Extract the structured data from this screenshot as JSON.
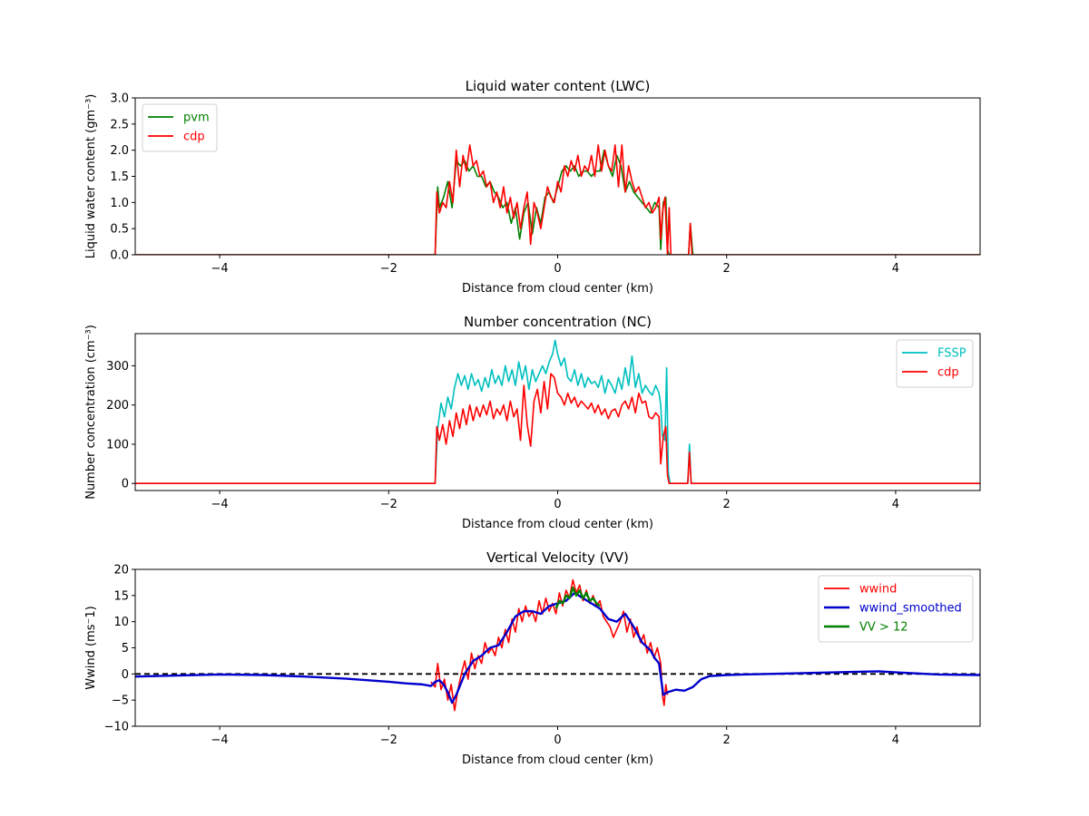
{
  "chart_data": [
    {
      "type": "line",
      "title": "Liquid water content (LWC)",
      "xlabel": "Distance from cloud center (km)",
      "ylabel": "Liquid water content (gm⁻³)",
      "xlim": [
        -5,
        5
      ],
      "ylim": [
        0,
        3.0
      ],
      "xticks": [
        -4,
        -2,
        0,
        2,
        4
      ],
      "xtick_labels": [
        "−4",
        "−2",
        "0",
        "2",
        "4"
      ],
      "yticks": [
        0,
        0.5,
        1.0,
        1.5,
        2.0,
        2.5,
        3.0
      ],
      "ytick_labels": [
        "0.0",
        "0.5",
        "1.0",
        "1.5",
        "2.0",
        "2.5",
        "3.0"
      ],
      "grid": false,
      "legend_position": "top-left",
      "series": [
        {
          "name": "pvm",
          "color": "#008000",
          "x": [
            -5,
            -1.45,
            -1.42,
            -1.4,
            -1.35,
            -1.3,
            -1.25,
            -1.2,
            -1.15,
            -1.1,
            -1.05,
            -1.0,
            -0.95,
            -0.9,
            -0.85,
            -0.8,
            -0.75,
            -0.7,
            -0.65,
            -0.6,
            -0.55,
            -0.5,
            -0.45,
            -0.4,
            -0.35,
            -0.3,
            -0.25,
            -0.2,
            -0.15,
            -0.1,
            -0.05,
            0.0,
            0.05,
            0.1,
            0.15,
            0.2,
            0.25,
            0.3,
            0.35,
            0.4,
            0.45,
            0.5,
            0.55,
            0.6,
            0.65,
            0.7,
            0.75,
            0.8,
            0.85,
            0.9,
            0.95,
            1.0,
            1.05,
            1.1,
            1.15,
            1.2,
            1.22,
            1.25,
            1.28,
            1.3,
            1.32,
            1.35,
            1.5,
            1.55,
            1.57,
            1.6,
            5
          ],
          "y": [
            0,
            0,
            1.3,
            0.9,
            1.1,
            1.4,
            0.9,
            1.8,
            1.7,
            1.8,
            1.6,
            1.7,
            1.5,
            1.5,
            1.3,
            1.4,
            1.2,
            1.1,
            0.9,
            1.0,
            0.6,
            0.9,
            0.3,
            0.8,
            1.0,
            0.4,
            0.9,
            0.6,
            1.1,
            1.2,
            1.0,
            1.3,
            1.6,
            1.7,
            1.6,
            1.7,
            1.5,
            1.6,
            1.6,
            1.5,
            1.6,
            1.6,
            2.0,
            1.7,
            1.5,
            1.9,
            1.7,
            1.2,
            1.4,
            1.2,
            1.1,
            1.0,
            0.9,
            0.8,
            1.0,
            0.9,
            0.1,
            1.0,
            1.1,
            0.1,
            0.0,
            0,
            0,
            0,
            0.6,
            0,
            0
          ]
        },
        {
          "name": "cdp",
          "color": "#ff0000",
          "x": [
            -5,
            -1.45,
            -1.43,
            -1.4,
            -1.36,
            -1.32,
            -1.28,
            -1.24,
            -1.2,
            -1.16,
            -1.12,
            -1.08,
            -1.04,
            -1.0,
            -0.96,
            -0.92,
            -0.88,
            -0.84,
            -0.8,
            -0.76,
            -0.72,
            -0.68,
            -0.64,
            -0.6,
            -0.56,
            -0.52,
            -0.48,
            -0.44,
            -0.4,
            -0.36,
            -0.32,
            -0.28,
            -0.24,
            -0.2,
            -0.16,
            -0.12,
            -0.08,
            -0.04,
            0.0,
            0.04,
            0.08,
            0.12,
            0.16,
            0.2,
            0.24,
            0.28,
            0.32,
            0.36,
            0.4,
            0.44,
            0.48,
            0.52,
            0.56,
            0.6,
            0.64,
            0.68,
            0.72,
            0.76,
            0.8,
            0.84,
            0.88,
            0.92,
            0.96,
            1.0,
            1.04,
            1.08,
            1.12,
            1.16,
            1.2,
            1.22,
            1.24,
            1.27,
            1.3,
            1.32,
            1.34,
            1.5,
            1.55,
            1.57,
            1.59,
            5
          ],
          "y": [
            0,
            0,
            1.2,
            0.8,
            1.0,
            0.9,
            1.4,
            1.0,
            2.0,
            1.3,
            1.9,
            1.6,
            2.1,
            1.7,
            1.8,
            1.5,
            1.6,
            1.3,
            1.4,
            1.0,
            1.2,
            0.9,
            1.3,
            0.8,
            1.1,
            0.7,
            1.0,
            0.5,
            0.9,
            1.2,
            0.2,
            1.0,
            0.8,
            0.5,
            0.9,
            1.3,
            1.1,
            1.0,
            1.4,
            1.2,
            1.7,
            1.5,
            1.8,
            1.6,
            1.9,
            1.5,
            1.7,
            1.6,
            1.9,
            1.5,
            2.1,
            1.6,
            2.0,
            1.7,
            1.6,
            2.1,
            1.3,
            2.1,
            1.2,
            1.7,
            1.4,
            1.2,
            1.3,
            1.1,
            0.9,
            1.0,
            0.8,
            0.9,
            1.1,
            0.3,
            0.8,
            1.1,
            0.0,
            0.9,
            0,
            0,
            0,
            0.6,
            0,
            0
          ]
        }
      ]
    },
    {
      "type": "line",
      "title": "Number concentration (NC)",
      "xlabel": "Distance from cloud center (km)",
      "ylabel": "Number concentration (cm⁻³)",
      "xlim": [
        -5,
        5
      ],
      "ylim": [
        -18,
        382
      ],
      "xticks": [
        -4,
        -2,
        0,
        2,
        4
      ],
      "xtick_labels": [
        "−4",
        "−2",
        "0",
        "2",
        "4"
      ],
      "yticks": [
        0,
        100,
        200,
        300
      ],
      "ytick_labels": [
        "0",
        "100",
        "200",
        "300"
      ],
      "grid": false,
      "legend_position": "top-right",
      "series": [
        {
          "name": "FSSP",
          "color": "#00bfbf",
          "x": [
            -5,
            -1.45,
            -1.42,
            -1.38,
            -1.34,
            -1.3,
            -1.26,
            -1.22,
            -1.18,
            -1.14,
            -1.1,
            -1.06,
            -1.02,
            -0.98,
            -0.94,
            -0.9,
            -0.86,
            -0.82,
            -0.78,
            -0.74,
            -0.7,
            -0.66,
            -0.62,
            -0.58,
            -0.54,
            -0.5,
            -0.46,
            -0.42,
            -0.38,
            -0.34,
            -0.3,
            -0.26,
            -0.22,
            -0.18,
            -0.14,
            -0.1,
            -0.06,
            -0.03,
            0.0,
            0.04,
            0.08,
            0.12,
            0.16,
            0.2,
            0.24,
            0.28,
            0.32,
            0.36,
            0.4,
            0.44,
            0.48,
            0.52,
            0.56,
            0.6,
            0.64,
            0.68,
            0.72,
            0.76,
            0.8,
            0.84,
            0.88,
            0.92,
            0.96,
            1.0,
            1.04,
            1.08,
            1.12,
            1.16,
            1.2,
            1.22,
            1.24,
            1.27,
            1.29,
            1.31,
            1.33,
            1.5,
            1.54,
            1.56,
            1.58,
            5
          ],
          "y": [
            0,
            0,
            140,
            205,
            170,
            220,
            190,
            245,
            280,
            250,
            275,
            240,
            280,
            250,
            265,
            235,
            270,
            245,
            290,
            255,
            275,
            250,
            300,
            260,
            290,
            250,
            310,
            265,
            300,
            240,
            290,
            260,
            280,
            300,
            280,
            310,
            330,
            365,
            330,
            300,
            320,
            270,
            260,
            290,
            250,
            280,
            245,
            270,
            255,
            260,
            245,
            275,
            230,
            265,
            250,
            230,
            270,
            240,
            295,
            250,
            325,
            245,
            280,
            230,
            250,
            235,
            225,
            250,
            230,
            200,
            120,
            110,
            295,
            30,
            0,
            0,
            0,
            100,
            0,
            0
          ]
        },
        {
          "name": "cdp",
          "color": "#ff0000",
          "x": [
            -5,
            -1.45,
            -1.43,
            -1.4,
            -1.36,
            -1.32,
            -1.28,
            -1.24,
            -1.2,
            -1.16,
            -1.12,
            -1.08,
            -1.04,
            -1.0,
            -0.96,
            -0.92,
            -0.88,
            -0.84,
            -0.8,
            -0.76,
            -0.72,
            -0.68,
            -0.64,
            -0.6,
            -0.56,
            -0.52,
            -0.48,
            -0.44,
            -0.4,
            -0.36,
            -0.32,
            -0.28,
            -0.24,
            -0.2,
            -0.16,
            -0.12,
            -0.08,
            -0.04,
            0.0,
            0.04,
            0.08,
            0.12,
            0.16,
            0.2,
            0.24,
            0.28,
            0.32,
            0.36,
            0.4,
            0.44,
            0.48,
            0.52,
            0.56,
            0.6,
            0.64,
            0.68,
            0.72,
            0.76,
            0.8,
            0.84,
            0.88,
            0.92,
            0.96,
            1.0,
            1.04,
            1.08,
            1.12,
            1.16,
            1.2,
            1.22,
            1.25,
            1.28,
            1.3,
            1.32,
            1.5,
            1.54,
            1.56,
            1.58,
            5
          ],
          "y": [
            0,
            0,
            145,
            110,
            150,
            100,
            160,
            120,
            180,
            140,
            190,
            150,
            200,
            160,
            195,
            170,
            200,
            175,
            210,
            165,
            190,
            175,
            200,
            160,
            210,
            170,
            190,
            110,
            250,
            150,
            95,
            210,
            240,
            180,
            260,
            190,
            280,
            270,
            230,
            220,
            200,
            230,
            205,
            220,
            195,
            210,
            200,
            190,
            205,
            180,
            200,
            175,
            190,
            165,
            185,
            190,
            170,
            200,
            210,
            190,
            220,
            180,
            230,
            205,
            210,
            170,
            165,
            180,
            170,
            50,
            120,
            145,
            20,
            0,
            0,
            0,
            80,
            0,
            0
          ]
        }
      ]
    },
    {
      "type": "line",
      "title": "Vertical Velocity (VV)",
      "xlabel": "Distance from cloud center (km)",
      "ylabel": "Wwind (ms⁻1)",
      "xlim": [
        -5,
        5
      ],
      "ylim": [
        -10,
        20
      ],
      "xticks": [
        -4,
        -2,
        0,
        2,
        4
      ],
      "xtick_labels": [
        "−4",
        "−2",
        "0",
        "2",
        "4"
      ],
      "yticks": [
        -10,
        -5,
        0,
        5,
        10,
        15,
        20
      ],
      "ytick_labels": [
        "−10",
        "−5",
        "0",
        "5",
        "10",
        "15",
        "20"
      ],
      "grid": false,
      "legend_position": "top-right",
      "reference_line": {
        "y": 0,
        "style": "dashed",
        "color": "#000000"
      },
      "series": [
        {
          "name": "wwind",
          "color": "#ff0000",
          "x": [
            -1.5,
            -1.45,
            -1.42,
            -1.38,
            -1.34,
            -1.3,
            -1.26,
            -1.22,
            -1.18,
            -1.14,
            -1.1,
            -1.06,
            -1.02,
            -0.98,
            -0.94,
            -0.9,
            -0.86,
            -0.82,
            -0.78,
            -0.74,
            -0.7,
            -0.66,
            -0.62,
            -0.58,
            -0.54,
            -0.5,
            -0.46,
            -0.42,
            -0.38,
            -0.34,
            -0.3,
            -0.26,
            -0.22,
            -0.18,
            -0.14,
            -0.1,
            -0.06,
            -0.02,
            0.02,
            0.06,
            0.1,
            0.14,
            0.18,
            0.22,
            0.26,
            0.3,
            0.34,
            0.38,
            0.42,
            0.46,
            0.5,
            0.54,
            0.58,
            0.62,
            0.66,
            0.7,
            0.74,
            0.78,
            0.82,
            0.86,
            0.9,
            0.94,
            0.98,
            1.02,
            1.06,
            1.1,
            1.14,
            1.18,
            1.22,
            1.24,
            1.26,
            1.28,
            1.3
          ],
          "y": [
            -1.5,
            -2.5,
            2.0,
            -3.0,
            -1.0,
            -5.0,
            -2.0,
            -7.0,
            -3.0,
            0.0,
            2.5,
            -1.0,
            4.0,
            1.0,
            3.5,
            2.0,
            6.0,
            4.0,
            5.0,
            3.5,
            7.0,
            5.0,
            8.5,
            6.0,
            10.5,
            8.0,
            12.5,
            10.0,
            13.0,
            11.0,
            12.0,
            10.0,
            14.0,
            11.5,
            14.5,
            12.0,
            13.5,
            11.5,
            15.5,
            13.0,
            16.0,
            14.5,
            18.0,
            15.5,
            17.0,
            14.0,
            16.0,
            13.5,
            15.0,
            13.0,
            14.0,
            11.0,
            10.0,
            9.0,
            7.0,
            8.5,
            10.0,
            12.0,
            8.0,
            10.5,
            7.0,
            9.0,
            6.0,
            7.5,
            4.0,
            6.0,
            3.0,
            5.0,
            2.0,
            -4.0,
            -6.0,
            -2.0,
            -4.0
          ]
        },
        {
          "name": "wwind_smoothed",
          "color": "#0000cc",
          "x": [
            -5.0,
            -4.5,
            -4.0,
            -3.5,
            -3.0,
            -2.5,
            -2.0,
            -1.8,
            -1.6,
            -1.5,
            -1.45,
            -1.4,
            -1.35,
            -1.3,
            -1.25,
            -1.2,
            -1.1,
            -1.0,
            -0.9,
            -0.8,
            -0.7,
            -0.6,
            -0.5,
            -0.4,
            -0.3,
            -0.2,
            -0.1,
            0.0,
            0.1,
            0.2,
            0.3,
            0.4,
            0.5,
            0.6,
            0.7,
            0.8,
            0.9,
            1.0,
            1.1,
            1.15,
            1.2,
            1.25,
            1.3,
            1.4,
            1.5,
            1.6,
            1.7,
            1.8,
            2.0,
            2.2,
            2.5,
            3.0,
            3.5,
            3.8,
            4.0,
            4.5,
            5.0
          ],
          "y": [
            -0.5,
            -0.3,
            -0.1,
            -0.2,
            -0.5,
            -0.9,
            -1.5,
            -1.8,
            -2.0,
            -2.3,
            -1.5,
            -1.2,
            -2.0,
            -3.5,
            -5.5,
            -4.0,
            0.0,
            2.5,
            3.5,
            5.0,
            5.5,
            8.0,
            11.0,
            12.0,
            12.0,
            11.5,
            13.0,
            13.5,
            14.0,
            15.5,
            14.5,
            13.5,
            12.5,
            10.5,
            10.0,
            11.5,
            9.0,
            6.0,
            4.5,
            3.0,
            2.0,
            -4.0,
            -3.5,
            -3.0,
            -3.2,
            -2.5,
            -1.0,
            -0.4,
            -0.2,
            -0.1,
            0.0,
            0.2,
            0.4,
            0.5,
            0.3,
            -0.1,
            -0.2
          ]
        },
        {
          "name": "VV > 12",
          "color": "#008000",
          "x": [
            -0.02,
            0.02,
            0.06,
            0.1,
            0.14,
            0.18,
            0.22,
            0.26,
            0.3,
            0.34,
            0.38,
            0.42,
            0.46,
            0.5
          ],
          "y": [
            12.5,
            14.0,
            13.5,
            15.0,
            14.5,
            16.5,
            15.0,
            16.0,
            14.5,
            15.5,
            14.0,
            14.5,
            13.5,
            13.0
          ]
        }
      ]
    }
  ]
}
